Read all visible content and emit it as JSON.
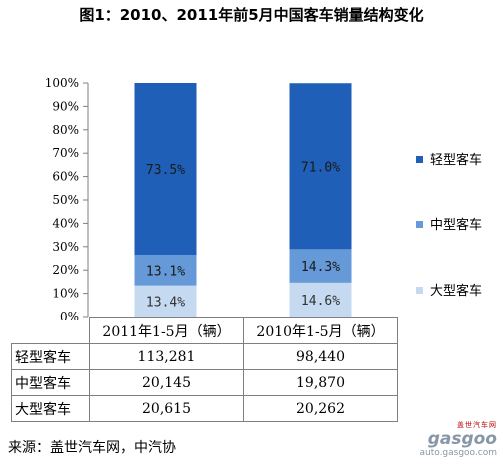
{
  "title": "图1：2010、2011年前5月中国客车销量结构变化",
  "source": "来源：盖世汽车网，中汽协",
  "watermark": {
    "top": "盖世汽车网",
    "logo": "gasgoo",
    "url": "auto.gasgoo.com"
  },
  "colors": {
    "light": "#1F5FB7",
    "medium": "#6699D8",
    "large": "#C5D9F1"
  },
  "chart_data": {
    "type": "bar",
    "stacked": true,
    "categories": [
      "2011年1-5月（辆）",
      "2010年1-5月（辆）"
    ],
    "series": [
      {
        "name": "大型客车",
        "values": [
          13.4,
          14.6
        ],
        "labels": [
          "13.4%",
          "14.6%"
        ],
        "color": "#C5D9F1",
        "text_color": "#333333"
      },
      {
        "name": "中型客车",
        "values": [
          13.1,
          14.3
        ],
        "labels": [
          "13.1%",
          "14.3%"
        ],
        "color": "#6699D8",
        "text_color": "#1a1a1a"
      },
      {
        "name": "轻型客车",
        "values": [
          73.5,
          71.0
        ],
        "labels": [
          "73.5%",
          "71.0%"
        ],
        "color": "#1F5FB7",
        "text_color": "#1a1a1a"
      }
    ],
    "legend_order": [
      "轻型客车",
      "中型客车",
      "大型客车"
    ],
    "legend_position": "right",
    "ylim": [
      0,
      100
    ],
    "yticks": [
      "0%",
      "10%",
      "20%",
      "30%",
      "40%",
      "50%",
      "60%",
      "70%",
      "80%",
      "90%",
      "100%"
    ],
    "grid": false
  },
  "table": {
    "columns": [
      "2011年1-5月（辆）",
      "2010年1-5月（辆）"
    ],
    "rows": [
      {
        "label": "轻型客车",
        "values": [
          "113,281",
          "98,440"
        ]
      },
      {
        "label": "中型客车",
        "values": [
          "20,145",
          "19,870"
        ]
      },
      {
        "label": "大型客车",
        "values": [
          "20,615",
          "20,262"
        ]
      }
    ]
  }
}
